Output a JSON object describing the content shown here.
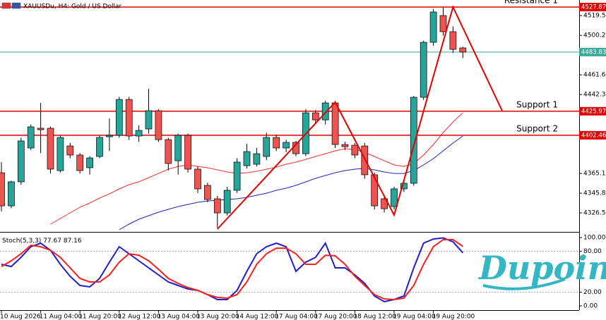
{
  "chart_data": [
    {
      "type": "candlestick",
      "title": "XAUUSDu, H4:  Gold / US Dollar",
      "categories": [
        "10 Aug 2026",
        null,
        null,
        null,
        "11 Aug 04:00",
        null,
        null,
        null,
        "11 Aug 20:00",
        null,
        null,
        null,
        "12 Aug 12:00",
        null,
        null,
        null,
        "13 Aug 04:00",
        null,
        null,
        null,
        "13 Aug 20:00",
        null,
        null,
        null,
        "14 Aug 12:00",
        null,
        null,
        null,
        "17 Aug 04:00",
        null,
        null,
        null,
        "17 Aug 20:00",
        null,
        null,
        null,
        "18 Aug 12:00",
        null,
        null,
        null,
        "19 Aug 04:00",
        null,
        null,
        null,
        "19 Aug 20:00",
        null,
        null,
        null
      ],
      "open": [
        4365.8,
        4333.4,
        4356.9,
        4390.0,
        4409.3,
        4409.3,
        4367.9,
        4392.0,
        4383.1,
        4370.7,
        4381.7,
        4401.0,
        4402.4,
        4437.5,
        4401.7,
        4408.6,
        4426.5,
        4398.2,
        4377.5,
        4402.4,
        4369.3,
        4353.4,
        4340.3,
        4326.5,
        4348.6,
        4372.7,
        4374.1,
        4381.7,
        4400.3,
        4390.0,
        4395.5,
        4384.4,
        4424.4,
        4417.5,
        4434.1,
        4393.4,
        4392.7,
        4392.0,
        4363.8,
        4340.3,
        4332.7,
        4350.0,
        4355.5,
        4439.6,
        4493.4,
        4519.6,
        4503.8,
        4487.9
      ],
      "high": [
        4376.2,
        4358,
        4400,
        4413,
        4434,
        4411,
        4402,
        4395,
        4385,
        4382,
        4402,
        4419,
        4440,
        4440,
        4412,
        4448,
        4428,
        4400,
        4404,
        4404,
        4372,
        4356,
        4343,
        4352,
        4380,
        4394,
        4390,
        4405,
        4403,
        4398,
        4397,
        4428,
        4427,
        4436,
        4436,
        4396,
        4395,
        4395,
        4366,
        4344,
        4352,
        4358,
        4441,
        4495,
        4526,
        4527.9,
        4509,
        4489
      ],
      "low": [
        4328,
        4331,
        4354,
        4388,
        4385,
        4365,
        4366,
        4380,
        4365,
        4364,
        4380,
        4387,
        4400,
        4398,
        4396,
        4404,
        4396,
        4368,
        4364,
        4366,
        4346,
        4337,
        4312,
        4324,
        4346,
        4370,
        4372,
        4378,
        4387,
        4386,
        4382,
        4382,
        4414,
        4413,
        4390,
        4388,
        4380,
        4360,
        4330,
        4327,
        4330,
        4347,
        4353,
        4437,
        4490,
        4500,
        4483,
        4478
      ],
      "close": [
        4333.4,
        4356.9,
        4396.9,
        4410.7,
        4407.9,
        4369.3,
        4400.3,
        4383.1,
        4367.9,
        4380.3,
        4400.3,
        4402.4,
        4437.5,
        4401.7,
        4407.2,
        4426.5,
        4398.2,
        4374.8,
        4402.4,
        4369.3,
        4350.0,
        4339.6,
        4326.5,
        4348.6,
        4376.2,
        4386.5,
        4384.4,
        4400.3,
        4390.0,
        4395.5,
        4384.4,
        4424.4,
        4417.5,
        4434.1,
        4393.4,
        4391.3,
        4383.1,
        4363.8,
        4333.4,
        4330.6,
        4350.0,
        4355.5,
        4439.6,
        4493.4,
        4523.1,
        4503.8,
        4486.5,
        4483.83
      ],
      "up_color": "#26a69a",
      "down_color": "#ef5350",
      "series": [
        {
          "color": "#ff3030",
          "values": [
            null,
            null,
            null,
            null,
            null,
            4315.5,
            4321.0,
            4326.5,
            4332.0,
            4336.2,
            4341.0,
            4345.1,
            4350.0,
            4354.1,
            4356.9,
            4361.0,
            4365.1,
            4369.3,
            4372.0,
            4373.4,
            4372.0,
            4370.7,
            4368.6,
            4366.5,
            4365.1,
            4365.8,
            4367.2,
            4369.3,
            4371.3,
            4374.1,
            4376.2,
            4378.9,
            4381.7,
            4384.4,
            4387.2,
            4389.3,
            4388.6,
            4385.8,
            4381.7,
            4377.5,
            4373.4,
            4372.0,
            4374.8,
            4383.1,
            4393.4,
            4405.1,
            4415.5,
            4424.4
          ]
        },
        {
          "color": "#2222c0",
          "values": [
            null,
            null,
            null,
            null,
            null,
            null,
            null,
            null,
            null,
            null,
            null,
            null,
            4310.0,
            4315.5,
            4320.3,
            4323.8,
            4327.2,
            4330.0,
            4332.7,
            4334.8,
            4336.9,
            4338.2,
            4338.9,
            4339.6,
            4340.3,
            4341.7,
            4343.8,
            4345.8,
            4348.6,
            4350.7,
            4353.4,
            4356.9,
            4360.3,
            4363.1,
            4365.8,
            4367.9,
            4369.3,
            4370.0,
            4368.6,
            4366.5,
            4365.1,
            4365.1,
            4367.9,
            4373.4,
            4379.6,
            4387.2,
            4394.8,
            4401.7
          ]
        }
      ],
      "levels": [
        {
          "name": "Resistance 1",
          "value": 4527.87,
          "color": "#e00000"
        },
        {
          "name": "Support 1",
          "value": 4425.97,
          "color": "#e00000"
        },
        {
          "name": "Support 2",
          "value": 4402.46,
          "color": "#e00000"
        }
      ],
      "bid_line": {
        "value": 4483.83,
        "color": "#3aa89a"
      },
      "trendline": {
        "x": [
          22,
          34,
          40,
          46,
          51
        ],
        "y": [
          4310.7,
          4434.8,
          4324.4,
          4527.9,
          4426.5
        ],
        "color": "#e00000"
      },
      "ylim": [
        4308.6,
        4534.8
      ],
      "yticks": [
        4519.55,
        {
          "value": 4500.2,
          "label": "4500.20"
        },
        {
          "value": 4461.6,
          "label": "4461.60"
        },
        {
          "value": 4442.3,
          "label": "4442.30"
        },
        {
          "value": 4365.1,
          "label": "4365.10"
        },
        {
          "value": 4345.8,
          "label": "4345.80"
        },
        {
          "value": 4326.5,
          "label": "4326.50"
        }
      ],
      "grid": false
    },
    {
      "type": "line",
      "title": "Stoch(5,3,3)",
      "series": [
        {
          "color": "#1f1fcc",
          "values": [
            60.8,
            57.7,
            71.1,
            86.6,
            91.8,
            81.4,
            60.8,
            43.3,
            29.9,
            27.8,
            40.2,
            63.9,
            86.6,
            76.3,
            66.0,
            55.7,
            45.4,
            35.1,
            29.9,
            24.7,
            22.7,
            16.5,
            9.3,
            9.3,
            22.7,
            50.5,
            76.3,
            86.6,
            91.8,
            86.6,
            50.5,
            63.9,
            71.1,
            91.8,
            55.7,
            55.7,
            45.4,
            33.0,
            14.4,
            6.2,
            9.3,
            14.4,
            55.7,
            91.8,
            97.9,
            99.5,
            93.8,
            77.67
          ]
        },
        {
          "color": "#ff1f1f",
          "values": [
            57.7,
            66.0,
            76.3,
            88.7,
            86.6,
            81.4,
            71.1,
            55.7,
            40.2,
            35.1,
            35.1,
            45.4,
            63.9,
            76.3,
            74.2,
            66.0,
            53.6,
            40.2,
            33.0,
            26.8,
            22.7,
            16.5,
            12.4,
            11.3,
            16.5,
            35.1,
            60.8,
            76.3,
            84.5,
            84.5,
            76.3,
            60.8,
            60.8,
            74.2,
            73.2,
            60.8,
            43.3,
            29.9,
            16.5,
            10.3,
            9.3,
            11.3,
            29.9,
            60.8,
            86.6,
            96.9,
            96.9,
            87.16
          ]
        }
      ],
      "level_lines": [
        80,
        20
      ],
      "ylim": [
        -6.2,
        105.2
      ],
      "yticks": [
        {
          "value": 100,
          "label": "100.00"
        },
        {
          "value": 80,
          "label": "80.00"
        },
        {
          "value": 20,
          "label": "20.00"
        },
        {
          "value": 0,
          "label": "0.00"
        }
      ]
    }
  ],
  "watermark": "Dupoin"
}
